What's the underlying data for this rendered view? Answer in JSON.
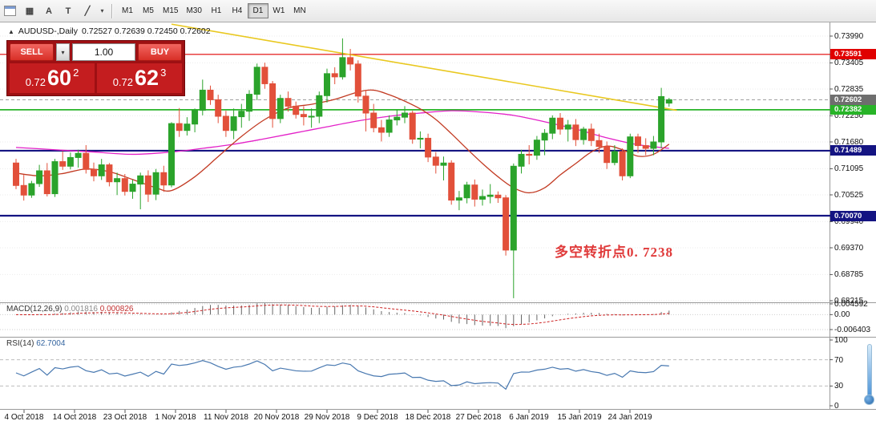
{
  "toolbar": {
    "icons": [
      {
        "name": "chart-type-icon",
        "glyph": "▦"
      },
      {
        "name": "text-label-a-button",
        "glyph": "A"
      },
      {
        "name": "text-tool-t-button",
        "glyph": "T"
      },
      {
        "name": "drawing-tools-button",
        "glyph": "╱"
      },
      {
        "name": "dropdown-caret-icon",
        "glyph": "▾"
      }
    ],
    "timeframes": [
      "M1",
      "M5",
      "M15",
      "M30",
      "H1",
      "H4",
      "D1",
      "W1",
      "MN"
    ],
    "active_timeframe": "D1"
  },
  "chart_header": {
    "symbol_title": "AUDUSD-,Daily",
    "ohlc": "0.72527 0.72639 0.72450 0.72602"
  },
  "trade_panel": {
    "sell_label": "SELL",
    "buy_label": "BUY",
    "volume": "1.00",
    "dropdown_caret": "▾",
    "sell_price": {
      "prefix": "0.72",
      "big": "60",
      "sup": "2"
    },
    "buy_price": {
      "prefix": "0.72",
      "big": "62",
      "sup": "3"
    }
  },
  "annotation": {
    "text": "多空转折点0. 7238",
    "color": "#e03a3a"
  },
  "macd_panel": {
    "name": "MACD(12,26,9)",
    "main_value": "0.001816",
    "signal_value": "0.000826",
    "axis_labels": [
      "0.004592",
      "0.00",
      "-0.006403"
    ]
  },
  "rsi_panel": {
    "name": "RSI(14)",
    "value": "62.7004",
    "axis_labels": [
      "100",
      "70",
      "30",
      "0"
    ]
  },
  "chart_data": {
    "type": "candlestick",
    "symbol": "AUDUSD",
    "timeframe": "D1",
    "price_scale": {
      "top": 0.7399,
      "bottom": 0.68215
    },
    "price_axis_ticks": [
      "0.73990",
      "0.73405",
      "0.72835",
      "0.72250",
      "0.71680",
      "0.71095",
      "0.70525",
      "0.69940",
      "0.69370",
      "0.68785",
      "0.68215"
    ],
    "colors": {
      "up": "#2BA32B",
      "down": "#E2503A",
      "ma_fast": "#C23A22",
      "ma_slow": "#E321C8",
      "trendline": "#E9C81F",
      "macd_hist": "#666666",
      "macd_signal": "#CC2020",
      "rsi": "#4878B0"
    },
    "hlines": [
      {
        "price": 0.73591,
        "label": "0.73591",
        "color": "#E00000",
        "width": 1.2
      },
      {
        "price": 0.72382,
        "label": "0.72382",
        "color": "#28B428",
        "width": 1.8
      },
      {
        "price": 0.71489,
        "label": "0.71489",
        "color": "#141482",
        "width": 2.2
      },
      {
        "price": 0.7007,
        "label": "0.70070",
        "color": "#141482",
        "width": 2.2
      }
    ],
    "current_price": {
      "price": 0.72602,
      "label": "0.72602",
      "tag_color": "#6E6E6E"
    },
    "trendline": {
      "from": [
        20,
        0.7425
      ],
      "to": [
        85,
        0.7237
      ]
    },
    "ma_fast_points": [
      [
        0,
        0.71
      ],
      [
        3,
        0.7094
      ],
      [
        6,
        0.7099
      ],
      [
        9,
        0.7109
      ],
      [
        12,
        0.7103
      ],
      [
        15,
        0.7086
      ],
      [
        18,
        0.7068
      ],
      [
        20,
        0.7062
      ],
      [
        23,
        0.7092
      ],
      [
        26,
        0.7136
      ],
      [
        29,
        0.718
      ],
      [
        32,
        0.7217
      ],
      [
        35,
        0.7242
      ],
      [
        38,
        0.725
      ],
      [
        41,
        0.7261
      ],
      [
        44,
        0.7277
      ],
      [
        46,
        0.7281
      ],
      [
        48,
        0.7271
      ],
      [
        50,
        0.7257
      ],
      [
        52,
        0.724
      ],
      [
        54,
        0.7217
      ],
      [
        56,
        0.7186
      ],
      [
        58,
        0.7153
      ],
      [
        60,
        0.7121
      ],
      [
        62,
        0.7092
      ],
      [
        64,
        0.7068
      ],
      [
        66,
        0.7057
      ],
      [
        68,
        0.7068
      ],
      [
        70,
        0.7096
      ],
      [
        72,
        0.7121
      ],
      [
        74,
        0.7146
      ],
      [
        76,
        0.7159
      ],
      [
        78,
        0.7151
      ],
      [
        80,
        0.7137
      ],
      [
        82,
        0.7141
      ],
      [
        84,
        0.7163
      ]
    ],
    "ma_slow_points": [
      [
        0,
        0.7156
      ],
      [
        5,
        0.7151
      ],
      [
        10,
        0.7146
      ],
      [
        15,
        0.7141
      ],
      [
        20,
        0.7146
      ],
      [
        24,
        0.7154
      ],
      [
        28,
        0.7163
      ],
      [
        32,
        0.7175
      ],
      [
        36,
        0.7188
      ],
      [
        40,
        0.7201
      ],
      [
        44,
        0.7214
      ],
      [
        48,
        0.7224
      ],
      [
        52,
        0.7231
      ],
      [
        56,
        0.7236
      ],
      [
        60,
        0.7233
      ],
      [
        64,
        0.7226
      ],
      [
        68,
        0.7212
      ],
      [
        72,
        0.7196
      ],
      [
        76,
        0.7177
      ],
      [
        80,
        0.7162
      ],
      [
        84,
        0.7154
      ]
    ],
    "candles": [
      [
        0.7122,
        0.7131,
        0.7065,
        0.7073
      ],
      [
        0.7073,
        0.7096,
        0.704,
        0.7052
      ],
      [
        0.7052,
        0.7083,
        0.7046,
        0.7077
      ],
      [
        0.7077,
        0.7118,
        0.707,
        0.7105
      ],
      [
        0.7105,
        0.7122,
        0.7049,
        0.7055
      ],
      [
        0.7055,
        0.7131,
        0.7048,
        0.7125
      ],
      [
        0.7125,
        0.7148,
        0.7107,
        0.7115
      ],
      [
        0.7115,
        0.7145,
        0.7108,
        0.7134
      ],
      [
        0.7134,
        0.7151,
        0.7112,
        0.7143
      ],
      [
        0.7143,
        0.7161,
        0.7099,
        0.7108
      ],
      [
        0.7108,
        0.7123,
        0.7082,
        0.7094
      ],
      [
        0.7094,
        0.7131,
        0.7085,
        0.7118
      ],
      [
        0.7118,
        0.7122,
        0.7071,
        0.7081
      ],
      [
        0.7081,
        0.7101,
        0.7052,
        0.7088
      ],
      [
        0.7088,
        0.7098,
        0.7051,
        0.706
      ],
      [
        0.706,
        0.7086,
        0.7044,
        0.7076
      ],
      [
        0.7076,
        0.7101,
        0.7021,
        0.7094
      ],
      [
        0.7094,
        0.7106,
        0.7037,
        0.7054
      ],
      [
        0.7054,
        0.7109,
        0.7041,
        0.7101
      ],
      [
        0.7101,
        0.7116,
        0.7059,
        0.7074
      ],
      [
        0.7074,
        0.7211,
        0.7069,
        0.7208
      ],
      [
        0.7208,
        0.7242,
        0.7179,
        0.7193
      ],
      [
        0.7193,
        0.7222,
        0.7182,
        0.7207
      ],
      [
        0.7207,
        0.7241,
        0.7189,
        0.7237
      ],
      [
        0.7237,
        0.7304,
        0.7226,
        0.7281
      ],
      [
        0.7281,
        0.7291,
        0.7249,
        0.726
      ],
      [
        0.726,
        0.7271,
        0.7209,
        0.7224
      ],
      [
        0.7224,
        0.7236,
        0.7179,
        0.7193
      ],
      [
        0.7193,
        0.7241,
        0.7174,
        0.7223
      ],
      [
        0.7223,
        0.7251,
        0.7199,
        0.7235
      ],
      [
        0.7235,
        0.7281,
        0.7214,
        0.7272
      ],
      [
        0.7272,
        0.7339,
        0.7259,
        0.7331
      ],
      [
        0.7331,
        0.7341,
        0.7284,
        0.7295
      ],
      [
        0.7295,
        0.7301,
        0.7199,
        0.7219
      ],
      [
        0.7219,
        0.7271,
        0.7209,
        0.7263
      ],
      [
        0.7263,
        0.7278,
        0.7234,
        0.7246
      ],
      [
        0.7246,
        0.7256,
        0.7219,
        0.7228
      ],
      [
        0.7228,
        0.7246,
        0.7204,
        0.7223
      ],
      [
        0.7223,
        0.7241,
        0.7199,
        0.7224
      ],
      [
        0.7224,
        0.7278,
        0.7209,
        0.7269
      ],
      [
        0.7269,
        0.7328,
        0.7254,
        0.7317
      ],
      [
        0.7317,
        0.7331,
        0.7294,
        0.731
      ],
      [
        0.731,
        0.7394,
        0.7304,
        0.7352
      ],
      [
        0.7352,
        0.7371,
        0.7324,
        0.7338
      ],
      [
        0.7338,
        0.7346,
        0.7254,
        0.7268
      ],
      [
        0.7268,
        0.7281,
        0.7191,
        0.7231
      ],
      [
        0.7231,
        0.7251,
        0.7189,
        0.7199
      ],
      [
        0.7199,
        0.7216,
        0.7169,
        0.7189
      ],
      [
        0.7189,
        0.7226,
        0.7179,
        0.7216
      ],
      [
        0.7216,
        0.7238,
        0.7204,
        0.7222
      ],
      [
        0.7222,
        0.7246,
        0.7209,
        0.7231
      ],
      [
        0.7231,
        0.7236,
        0.7164,
        0.7174
      ],
      [
        0.7174,
        0.7191,
        0.7154,
        0.7176
      ],
      [
        0.7176,
        0.7186,
        0.7124,
        0.7135
      ],
      [
        0.7135,
        0.7146,
        0.7099,
        0.7117
      ],
      [
        0.7117,
        0.7136,
        0.7084,
        0.7122
      ],
      [
        0.7122,
        0.7128,
        0.7031,
        0.7041
      ],
      [
        0.7041,
        0.7061,
        0.7019,
        0.7046
      ],
      [
        0.7046,
        0.7081,
        0.7034,
        0.7074
      ],
      [
        0.7074,
        0.7086,
        0.7027,
        0.7043
      ],
      [
        0.7043,
        0.7064,
        0.7029,
        0.7049
      ],
      [
        0.7049,
        0.7076,
        0.7034,
        0.7052
      ],
      [
        0.7052,
        0.706,
        0.7035,
        0.7046
      ],
      [
        0.7046,
        0.7052,
        0.692,
        0.6932
      ],
      [
        0.6932,
        0.7121,
        0.6827,
        0.7115
      ],
      [
        0.7115,
        0.7151,
        0.7099,
        0.7141
      ],
      [
        0.7141,
        0.7161,
        0.7119,
        0.7139
      ],
      [
        0.7139,
        0.7181,
        0.7129,
        0.7172
      ],
      [
        0.7172,
        0.7196,
        0.7139,
        0.7187
      ],
      [
        0.7187,
        0.7226,
        0.7174,
        0.722
      ],
      [
        0.722,
        0.7231,
        0.7184,
        0.7196
      ],
      [
        0.7196,
        0.7216,
        0.7169,
        0.7205
      ],
      [
        0.7205,
        0.7218,
        0.7159,
        0.7173
      ],
      [
        0.7173,
        0.7201,
        0.7162,
        0.7196
      ],
      [
        0.7196,
        0.7208,
        0.7159,
        0.7171
      ],
      [
        0.7171,
        0.7186,
        0.7144,
        0.7158
      ],
      [
        0.7158,
        0.7169,
        0.7109,
        0.7123
      ],
      [
        0.7123,
        0.7161,
        0.7117,
        0.7147
      ],
      [
        0.7147,
        0.7154,
        0.7084,
        0.7094
      ],
      [
        0.7094,
        0.7186,
        0.7089,
        0.7179
      ],
      [
        0.7179,
        0.7186,
        0.7144,
        0.716
      ],
      [
        0.716,
        0.7176,
        0.7139,
        0.7154
      ],
      [
        0.7154,
        0.7181,
        0.7139,
        0.7168
      ],
      [
        0.7168,
        0.7286,
        0.7154,
        0.7267
      ],
      [
        0.72527,
        0.72639,
        0.7245,
        0.72602
      ]
    ],
    "macd_scale": {
      "top": 0.004592,
      "bottom": -0.006403
    },
    "rsi_levels": [
      70,
      30
    ],
    "date_ticks": {
      "labels": [
        "4 Oct 2018",
        "14 Oct 2018",
        "23 Oct 2018",
        "1 Nov 2018",
        "11 Nov 2018",
        "20 Nov 2018",
        "29 Nov 2018",
        "9 Dec 2018",
        "18 Dec 2018",
        "27 Dec 2018",
        "6 Jan 2019",
        "15 Jan 2019",
        "24 Jan 2019"
      ],
      "x": [
        30,
        93,
        156,
        219,
        282,
        345,
        408,
        471,
        534,
        597,
        660,
        723,
        786
      ]
    }
  }
}
